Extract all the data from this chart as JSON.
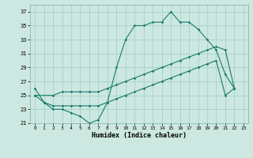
{
  "xlabel": "Humidex (Indice chaleur)",
  "bg_color": "#cce8e0",
  "grid_color": "#9ecfc4",
  "line_color": "#1a7a6e",
  "xlim": [
    -0.5,
    23.5
  ],
  "ylim": [
    21,
    38
  ],
  "xticks": [
    0,
    1,
    2,
    3,
    4,
    5,
    6,
    7,
    8,
    9,
    10,
    11,
    12,
    13,
    14,
    15,
    16,
    17,
    18,
    19,
    20,
    21,
    22,
    23
  ],
  "yticks": [
    21,
    23,
    25,
    27,
    29,
    31,
    33,
    35,
    37
  ],
  "line1_x": [
    0,
    1,
    2,
    3,
    4,
    5,
    6,
    7,
    8,
    9,
    10,
    11,
    12,
    13,
    14,
    15,
    16,
    17,
    18,
    19,
    20,
    21,
    22
  ],
  "line1_y": [
    26,
    24,
    23,
    23,
    22.5,
    22,
    21,
    21.5,
    24,
    29,
    33,
    35,
    35,
    35.5,
    35.5,
    37,
    35.5,
    35.5,
    34.5,
    33,
    31.5,
    28,
    26
  ],
  "line2_x": [
    0,
    2,
    3,
    4,
    5,
    6,
    7,
    8,
    9,
    10,
    11,
    12,
    13,
    14,
    15,
    16,
    17,
    18,
    19,
    20,
    21,
    22
  ],
  "line2_y": [
    25,
    25,
    25.5,
    25.5,
    25.5,
    25.5,
    25.5,
    26,
    26.5,
    27,
    27.5,
    28,
    28.5,
    29,
    29.5,
    30,
    30.5,
    31,
    31.5,
    32,
    31.5,
    26
  ],
  "line3_x": [
    0,
    1,
    2,
    3,
    4,
    5,
    6,
    7,
    8,
    9,
    10,
    11,
    12,
    13,
    14,
    15,
    16,
    17,
    18,
    19,
    20,
    21,
    22
  ],
  "line3_y": [
    25,
    24,
    23.5,
    23.5,
    23.5,
    23.5,
    23.5,
    23.5,
    24,
    24.5,
    25,
    25.5,
    26,
    26.5,
    27,
    27.5,
    28,
    28.5,
    29,
    29.5,
    30,
    25,
    26
  ]
}
